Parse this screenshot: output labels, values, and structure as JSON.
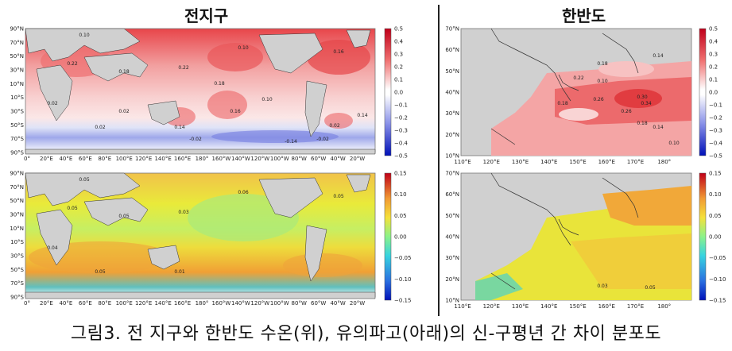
{
  "titles": {
    "global": "전지구",
    "korea": "한반도"
  },
  "caption": "그림3. 전 지구와 한반도 수온(위), 유의파고(아래)의 신-구평년 간 차이 분포도",
  "panels": {
    "global_sst": {
      "lat_ticks": [
        "90°N",
        "70°N",
        "50°N",
        "30°N",
        "10°N",
        "10°S",
        "30°S",
        "50°S",
        "70°S",
        "90°S"
      ],
      "lon_ticks": [
        "0°",
        "20°E",
        "40°E",
        "60°E",
        "80°E",
        "100°E",
        "120°E",
        "140°E",
        "160°E",
        "180°",
        "160°W",
        "140°W",
        "120°W",
        "100°W",
        "80°W",
        "60°W",
        "40°W",
        "20°W"
      ],
      "colorbar_ticks": [
        "0.5",
        "0.4",
        "0.3",
        "0.2",
        "0.1",
        "0.0",
        "−0.1",
        "−0.2",
        "−0.3",
        "−0.4",
        "−0.5"
      ],
      "contour_labels": [
        "0.10",
        "0.22",
        "0.18",
        "0.10",
        "0.16",
        "0.22",
        "0.02",
        "0.14",
        "0.02",
        "0.02",
        "0.16",
        "-0.02",
        "-0.14",
        "-0.02",
        "0.02",
        "0.18",
        "0.10",
        "0.14"
      ]
    },
    "global_swh": {
      "lat_ticks": [
        "90°N",
        "70°N",
        "50°N",
        "30°N",
        "10°N",
        "10°S",
        "30°S",
        "50°S",
        "70°S",
        "90°S"
      ],
      "lon_ticks": [
        "0°",
        "20°E",
        "40°E",
        "60°E",
        "80°E",
        "100°E",
        "120°E",
        "140°E",
        "160°E",
        "180°",
        "160°W",
        "140°W",
        "120°W",
        "100°W",
        "80°W",
        "60°W",
        "40°W",
        "20°W"
      ],
      "colorbar_ticks": [
        "0.15",
        "0.10",
        "0.05",
        "0.00",
        "−0.05",
        "−0.10",
        "−0.15"
      ],
      "contour_labels": [
        "0.05",
        "0.05",
        "0.05",
        "0.06",
        "0.05",
        "0.03",
        "0.04",
        "0.01",
        "0.05"
      ]
    },
    "korea_sst": {
      "lat_ticks": [
        "70°N",
        "60°N",
        "50°N",
        "40°N",
        "30°N",
        "20°N",
        "10°N"
      ],
      "lon_ticks": [
        "110°E",
        "120°E",
        "130°E",
        "140°E",
        "150°E",
        "160°E",
        "170°E",
        "180°"
      ],
      "colorbar_ticks": [
        "0.5",
        "0.4",
        "0.3",
        "0.2",
        "0.1",
        "0.0",
        "−0.1",
        "−0.2",
        "−0.3",
        "−0.4",
        "−0.5"
      ],
      "contour_labels": [
        "0.14",
        "0.18",
        "0.10",
        "0.22",
        "0.18",
        "0.26",
        "0.30",
        "0.34",
        "0.26",
        "0.18",
        "0.14",
        "0.10"
      ]
    },
    "korea_swh": {
      "lat_ticks": [
        "70°N",
        "60°N",
        "50°N",
        "40°N",
        "30°N",
        "20°N",
        "10°N"
      ],
      "lon_ticks": [
        "110°E",
        "120°E",
        "130°E",
        "140°E",
        "150°E",
        "160°E",
        "170°E",
        "180°"
      ],
      "colorbar_ticks": [
        "0.15",
        "0.10",
        "0.05",
        "0.00",
        "−0.05",
        "−0.10",
        "−0.15"
      ],
      "contour_labels": [
        "0.03",
        "0.05"
      ]
    }
  }
}
